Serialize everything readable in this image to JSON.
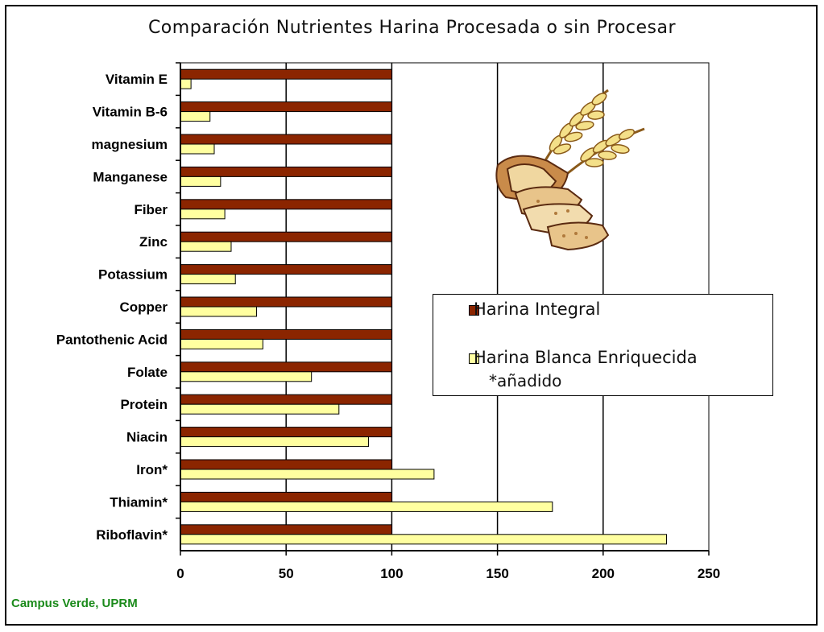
{
  "chart_data": {
    "type": "bar",
    "orientation": "horizontal",
    "title": "Comparación Nutrientes Harina Procesada o sin Procesar",
    "categories": [
      "Vitamin E",
      "Vitamin B-6",
      "magnesium",
      "Manganese",
      "Fiber",
      "Zinc",
      "Potassium",
      "Copper",
      "Pantothenic Acid",
      "Folate",
      "Protein",
      "Niacin",
      "Iron*",
      "Thiamin*",
      "Riboflavin*"
    ],
    "series": [
      {
        "name": "Harina Integral",
        "color": "#8b2500",
        "values": [
          100,
          100,
          100,
          100,
          100,
          100,
          100,
          100,
          100,
          100,
          100,
          100,
          100,
          100,
          100
        ]
      },
      {
        "name": "Harina Blanca Enriquecida",
        "color": "#ffffa0",
        "values": [
          5,
          14,
          16,
          19,
          21,
          24,
          26,
          36,
          39,
          62,
          75,
          89,
          120,
          176,
          230
        ]
      }
    ],
    "xlim": [
      0,
      250
    ],
    "xticks": [
      "0",
      "50",
      "100",
      "150",
      "200",
      "250"
    ],
    "grid": "vertical major",
    "legend_note": "*añadido",
    "legend_position": "right-middle"
  },
  "footer_text": "Campus Verde, UPRM",
  "illustration": "bread-and-wheat-clipart"
}
